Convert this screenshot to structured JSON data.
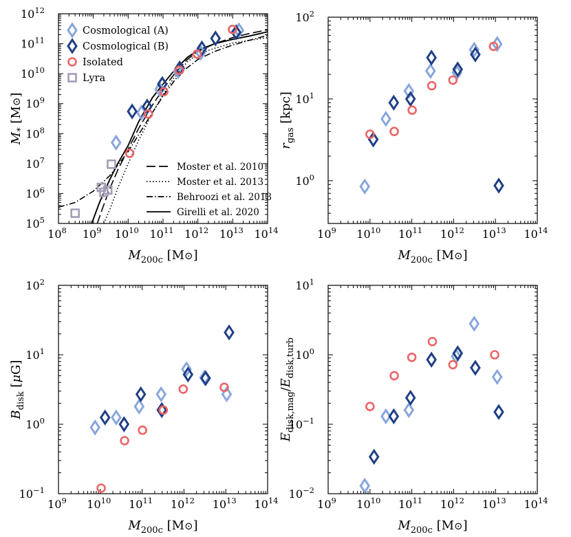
{
  "figure_title": "",
  "colors": {
    "cosmo_a": "#88a6dc",
    "cosmo_b": "#1f3f85",
    "isolated": "#ec6466",
    "lyra": "#a59db5"
  },
  "chart_data": [
    {
      "id": "mstar",
      "type": "scatter",
      "xscale": "log",
      "yscale": "log",
      "xlim": [
        100000000.0,
        100000000000000.0
      ],
      "ylim": [
        100000.0,
        1000000000000.0
      ],
      "xlabel": "M_200c [M_sun]",
      "ylabel": "M_* [M_sun]",
      "xticks": [
        "10^8",
        "10^9",
        "10^10",
        "10^11",
        "10^12",
        "10^13",
        "10^14"
      ],
      "yticks": [
        "10^5",
        "10^6",
        "10^7",
        "10^8",
        "10^9",
        "10^10",
        "10^11",
        "10^12"
      ],
      "legend_position": "upper-left",
      "legend": [
        {
          "label": "Cosmological (A)",
          "series": "cosmo_a"
        },
        {
          "label": "Cosmological (B)",
          "series": "cosmo_b"
        },
        {
          "label": "Isolated",
          "series": "isolated"
        },
        {
          "label": "Lyra",
          "series": "lyra"
        }
      ],
      "line_legend_position": "lower-right",
      "line_legend": [
        {
          "label": "Moster et al. 2010",
          "style": "dashed"
        },
        {
          "label": "Moster et al. 2013",
          "style": "dotted"
        },
        {
          "label": "Behroozi et al. 2013",
          "style": "dashdot"
        },
        {
          "label": "Girelli et al. 2020",
          "style": "solid"
        }
      ],
      "series": [
        {
          "name": "cosmo_a",
          "marker": "diamond",
          "x": [
            4500000000.0,
            24000000000.0,
            80000000000.0,
            270000000000.0,
            1200000000000.0,
            15000000000000.0
          ],
          "y": [
            50000000.0,
            500000000.0,
            3000000000.0,
            12000000000.0,
            50000000000.0,
            280000000000.0
          ]
        },
        {
          "name": "cosmo_b",
          "marker": "diamond",
          "x": [
            13000000000.0,
            35000000000.0,
            95000000000.0,
            300000000000.0,
            1300000000000.0,
            3200000000000.0,
            12500000000000.0
          ],
          "y": [
            550000000.0,
            800000000.0,
            4500000000.0,
            15000000000.0,
            70000000000.0,
            150000000000.0,
            240000000000.0
          ]
        },
        {
          "name": "isolated",
          "marker": "circle",
          "x": [
            11000000000.0,
            38000000000.0,
            105000000000.0,
            295000000000.0,
            950000000000.0,
            9800000000000.0
          ],
          "y": [
            22000000.0,
            450000000.0,
            2500000000.0,
            13000000000.0,
            45000000000.0,
            300000000000.0
          ]
        },
        {
          "name": "lyra",
          "marker": "square",
          "x": [
            300000000.0,
            1700000000.0,
            2000000000.0,
            2600000000.0,
            3300000000.0
          ],
          "y": [
            220000.0,
            1600000.0,
            1100000.0,
            1300000.0,
            9500000.0
          ]
        }
      ],
      "lines": [
        {
          "name": "Moster et al. 2010",
          "style": "dashed",
          "x": [
            1300000000.0,
            1800000000.0,
            3000000000.0,
            5000000000.0,
            10000000000.0,
            20000000000.0,
            50000000000.0,
            100000000000.0,
            200000000000.0,
            500000000000.0,
            1000000000000.0,
            3000000000000.0,
            10000000000000.0,
            30000000000000.0,
            100000000000000.0
          ],
          "y": [
            100000.0,
            300000.0,
            1500000.0,
            6000000.0,
            30000000.0,
            150000000.0,
            900000000.0,
            3000000000.0,
            9000000000.0,
            30000000000.0,
            55000000000.0,
            100000000000.0,
            160000000000.0,
            220000000000.0,
            290000000000.0
          ]
        },
        {
          "name": "Moster et al. 2013",
          "style": "dotted",
          "x": [
            2000000000.0,
            3000000000.0,
            5000000000.0,
            10000000000.0,
            20000000000.0,
            50000000000.0,
            100000000000.0,
            200000000000.0,
            500000000000.0,
            1000000000000.0,
            3000000000000.0,
            10000000000000.0,
            30000000000000.0,
            100000000000000.0
          ],
          "y": [
            100000.0,
            300000.0,
            1500000.0,
            10000000.0,
            60000000.0,
            500000000.0,
            2000000000.0,
            7000000000.0,
            25000000000.0,
            45000000000.0,
            70000000000.0,
            105000000000.0,
            130000000000.0,
            160000000000.0
          ]
        },
        {
          "name": "Behroozi et al. 2013",
          "style": "dashdot",
          "x": [
            100000000.0,
            300000000.0,
            1000000000.0,
            3000000000.0,
            10000000000.0,
            30000000000.0,
            100000000000.0,
            300000000000.0,
            1000000000000.0,
            3000000000000.0,
            10000000000000.0,
            30000000000000.0,
            100000000000000.0
          ],
          "y": [
            350000.0,
            500000.0,
            1200000.0,
            4000000.0,
            25000000.0,
            200000000.0,
            1800000000.0,
            10000000000.0,
            30000000000.0,
            55000000000.0,
            90000000000.0,
            130000000000.0,
            190000000000.0
          ]
        },
        {
          "name": "Girelli et al. 2020",
          "style": "solid",
          "x": [
            900000000.0,
            1500000000.0,
            3000000000.0,
            5000000000.0,
            10000000000.0,
            20000000000.0,
            50000000000.0,
            100000000000.0,
            200000000000.0,
            500000000000.0,
            1000000000000.0,
            3000000000000.0,
            10000000000000.0,
            30000000000000.0,
            100000000000000.0
          ],
          "y": [
            100000.0,
            500000.0,
            3000000.0,
            10000000.0,
            40000000.0,
            250000000.0,
            1600000000.0,
            4500000000.0,
            12000000000.0,
            35000000000.0,
            60000000000.0,
            100000000000.0,
            140000000000.0,
            180000000000.0,
            250000000000.0
          ]
        }
      ]
    },
    {
      "id": "rgas",
      "type": "scatter",
      "xscale": "log",
      "yscale": "log",
      "xlim": [
        1000000000.0,
        100000000000000.0
      ],
      "ylim": [
        0.3,
        100.0
      ],
      "xlabel": "M_200c [M_sun]",
      "ylabel": "r_gas [kpc]",
      "xticks": [
        "10^9",
        "10^10",
        "10^11",
        "10^12",
        "10^13",
        "10^14"
      ],
      "yticks": [
        "10^0",
        "10^1",
        "10^2"
      ],
      "series": [
        {
          "name": "cosmo_a",
          "marker": "diamond",
          "x": [
            7500000000.0,
            24000000000.0,
            85000000000.0,
            280000000000.0,
            1200000000000.0,
            3100000000000.0,
            11000000000000.0
          ],
          "y": [
            0.85,
            5.7,
            12.5,
            22,
            21,
            40,
            47
          ]
        },
        {
          "name": "cosmo_b",
          "marker": "diamond",
          "x": [
            12000000000.0,
            37000000000.0,
            93000000000.0,
            295000000000.0,
            1250000000000.0,
            3300000000000.0,
            12000000000000.0
          ],
          "y": [
            3.2,
            9,
            10,
            32,
            23,
            35,
            0.87
          ]
        },
        {
          "name": "isolated",
          "marker": "circle",
          "x": [
            10000000000.0,
            38000000000.0,
            102000000000.0,
            300000000000.0,
            960000000000.0,
            9000000000000.0
          ],
          "y": [
            3.7,
            4,
            7.3,
            14.5,
            17,
            44
          ]
        }
      ]
    },
    {
      "id": "bdisk",
      "type": "scatter",
      "xscale": "log",
      "yscale": "log",
      "xlim": [
        1000000000.0,
        100000000000000.0
      ],
      "ylim": [
        0.1,
        100.0
      ],
      "xlabel": "M_200c [M_sun]",
      "ylabel": "B_disk [μG]",
      "xticks": [
        "10^9",
        "10^10",
        "10^11",
        "10^12",
        "10^13",
        "10^14"
      ],
      "yticks": [
        "10^-1",
        "10^0",
        "10^1",
        "10^2"
      ],
      "series": [
        {
          "name": "cosmo_a",
          "marker": "diamond",
          "x": [
            7500000000.0,
            24000000000.0,
            85000000000.0,
            285000000000.0,
            1150000000000.0,
            3100000000000.0,
            10500000000000.0
          ],
          "y": [
            0.9,
            1.25,
            1.8,
            2.7,
            6.2,
            4.7,
            2.7
          ]
        },
        {
          "name": "cosmo_b",
          "marker": "diamond",
          "x": [
            13000000000.0,
            37000000000.0,
            93000000000.0,
            295000000000.0,
            1250000000000.0,
            3300000000000.0,
            12000000000000.0
          ],
          "y": [
            1.25,
            1.0,
            2.7,
            1.6,
            5.2,
            4.6,
            21
          ]
        },
        {
          "name": "isolated",
          "marker": "circle",
          "x": [
            10500000000.0,
            38000000000.0,
            102000000000.0,
            320000000000.0,
            960000000000.0,
            9200000000000.0
          ],
          "y": [
            0.12,
            0.58,
            0.82,
            1.6,
            3.2,
            3.4
          ]
        }
      ]
    },
    {
      "id": "eratio",
      "type": "scatter",
      "xscale": "log",
      "yscale": "log",
      "xlim": [
        1000000000.0,
        100000000000000.0
      ],
      "ylim": [
        0.01,
        10.0
      ],
      "xlabel": "M_200c [M_sun]",
      "ylabel": "E_disk,mag / E_disk,turb",
      "xticks": [
        "10^9",
        "10^10",
        "10^11",
        "10^12",
        "10^13",
        "10^14"
      ],
      "yticks": [
        "10^-2",
        "10^-1",
        "10^0",
        "10^1"
      ],
      "series": [
        {
          "name": "cosmo_a",
          "marker": "diamond",
          "x": [
            7500000000.0,
            24000000000.0,
            85000000000.0,
            1150000000000.0,
            3100000000000.0,
            11000000000000.0
          ],
          "y": [
            0.013,
            0.13,
            0.16,
            0.95,
            2.8,
            0.48
          ]
        },
        {
          "name": "cosmo_b",
          "marker": "diamond",
          "x": [
            12500000000.0,
            37000000000.0,
            93000000000.0,
            295000000000.0,
            1250000000000.0,
            3300000000000.0,
            12000000000000.0
          ],
          "y": [
            0.034,
            0.13,
            0.24,
            0.85,
            1.05,
            0.65,
            0.15
          ]
        },
        {
          "name": "isolated",
          "marker": "circle",
          "x": [
            10000000000.0,
            38000000000.0,
            100000000000.0,
            310000000000.0,
            960000000000.0,
            9600000000000.0
          ],
          "y": [
            0.18,
            0.5,
            0.92,
            1.55,
            0.72,
            1.0
          ]
        }
      ]
    }
  ]
}
